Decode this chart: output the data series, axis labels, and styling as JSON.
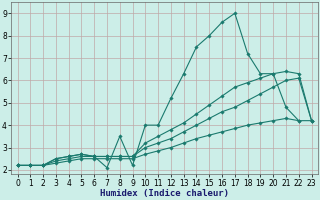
{
  "xlabel": "Humidex (Indice chaleur)",
  "background_color": "#cceee8",
  "grid_color": "#c0a8a8",
  "line_color": "#1a7a6e",
  "x_humidex": [
    0,
    1,
    2,
    3,
    4,
    5,
    6,
    7,
    8,
    9,
    10,
    11,
    12,
    13,
    14,
    15,
    16,
    17,
    18,
    19,
    20,
    21,
    22,
    23
  ],
  "series1_y": [
    2.2,
    2.2,
    2.2,
    2.5,
    2.6,
    2.7,
    2.6,
    2.1,
    3.5,
    2.2,
    4.0,
    4.0,
    5.2,
    6.3,
    7.5,
    8.0,
    8.6,
    9.0,
    7.2,
    6.3,
    6.3,
    4.8,
    4.2,
    null
  ],
  "series2_y": [
    2.2,
    2.2,
    2.2,
    2.5,
    2.6,
    2.7,
    2.6,
    2.6,
    2.6,
    2.6,
    3.2,
    3.5,
    3.8,
    4.1,
    4.5,
    4.9,
    5.3,
    5.7,
    5.9,
    6.1,
    6.3,
    6.4,
    6.3,
    4.2
  ],
  "series3_y": [
    2.2,
    2.2,
    2.2,
    2.4,
    2.5,
    2.6,
    2.6,
    2.6,
    2.6,
    2.6,
    3.0,
    3.2,
    3.4,
    3.7,
    4.0,
    4.3,
    4.6,
    4.8,
    5.1,
    5.4,
    5.7,
    6.0,
    6.1,
    4.2
  ],
  "series4_y": [
    2.2,
    2.2,
    2.2,
    2.3,
    2.4,
    2.5,
    2.5,
    2.5,
    2.5,
    2.5,
    2.7,
    2.85,
    3.0,
    3.2,
    3.4,
    3.55,
    3.7,
    3.85,
    4.0,
    4.1,
    4.2,
    4.3,
    4.2,
    4.2
  ],
  "ylim": [
    1.8,
    9.5
  ],
  "xlim": [
    -0.5,
    23.5
  ],
  "yticks": [
    2,
    3,
    4,
    5,
    6,
    7,
    8,
    9
  ],
  "xticks": [
    0,
    1,
    2,
    3,
    4,
    5,
    6,
    7,
    8,
    9,
    10,
    11,
    12,
    13,
    14,
    15,
    16,
    17,
    18,
    19,
    20,
    21,
    22,
    23
  ],
  "marker": "D",
  "markersize": 1.8,
  "linewidth": 0.8,
  "tick_fontsize": 5.5,
  "xlabel_fontsize": 6.5
}
